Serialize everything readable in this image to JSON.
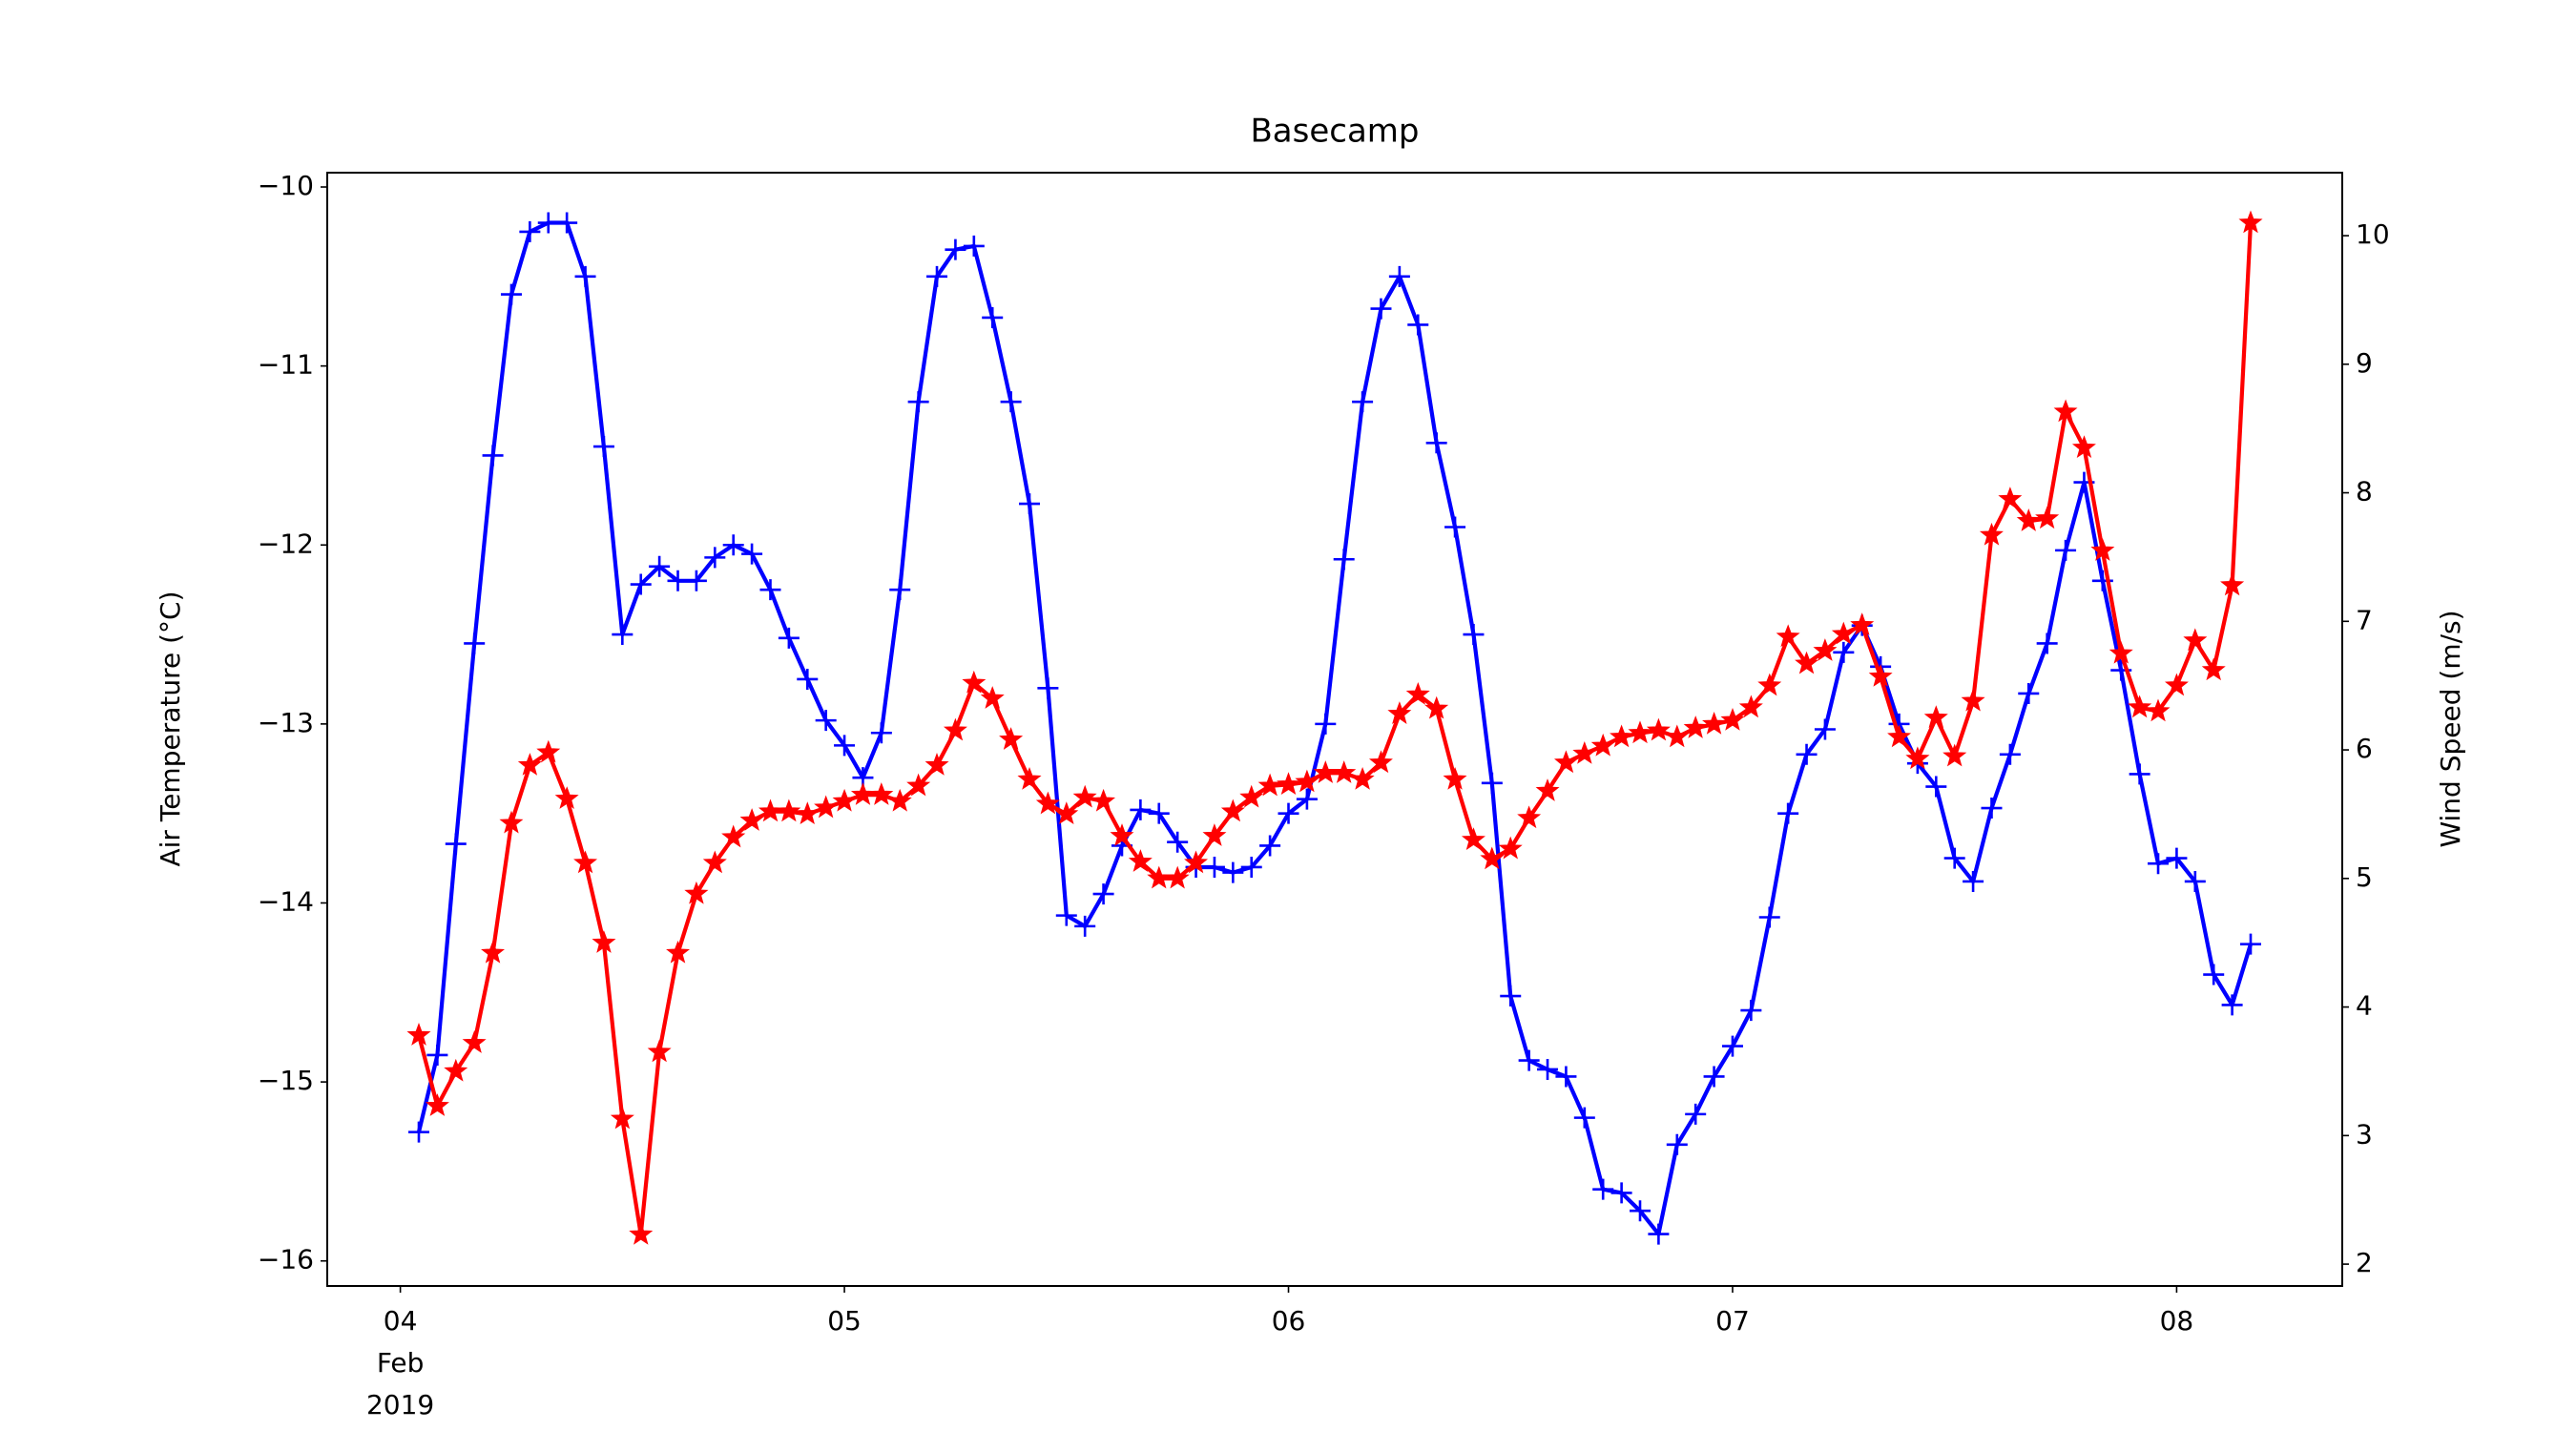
{
  "chart_data": {
    "type": "line",
    "title": "Basecamp",
    "x": [
      "2019-02-04 01:00",
      "2019-02-04 02:00",
      "2019-02-04 03:00",
      "2019-02-04 04:00",
      "2019-02-04 05:00",
      "2019-02-04 06:00",
      "2019-02-04 07:00",
      "2019-02-04 08:00",
      "2019-02-04 09:00",
      "2019-02-04 10:00",
      "2019-02-04 11:00",
      "2019-02-04 12:00",
      "2019-02-04 13:00",
      "2019-02-04 14:00",
      "2019-02-04 15:00",
      "2019-02-04 16:00",
      "2019-02-04 17:00",
      "2019-02-04 18:00",
      "2019-02-04 19:00",
      "2019-02-04 20:00",
      "2019-02-04 21:00",
      "2019-02-04 22:00",
      "2019-02-04 23:00",
      "2019-02-05 00:00",
      "2019-02-05 01:00",
      "2019-02-05 02:00",
      "2019-02-05 03:00",
      "2019-02-05 04:00",
      "2019-02-05 05:00",
      "2019-02-05 06:00",
      "2019-02-05 07:00",
      "2019-02-05 08:00",
      "2019-02-05 09:00",
      "2019-02-05 10:00",
      "2019-02-05 11:00",
      "2019-02-05 12:00",
      "2019-02-05 13:00",
      "2019-02-05 14:00",
      "2019-02-05 15:00",
      "2019-02-05 16:00",
      "2019-02-05 17:00",
      "2019-02-05 18:00",
      "2019-02-05 19:00",
      "2019-02-05 20:00",
      "2019-02-05 21:00",
      "2019-02-05 22:00",
      "2019-02-05 23:00",
      "2019-02-06 00:00",
      "2019-02-06 01:00",
      "2019-02-06 02:00",
      "2019-02-06 03:00",
      "2019-02-06 04:00",
      "2019-02-06 05:00",
      "2019-02-06 06:00",
      "2019-02-06 07:00",
      "2019-02-06 08:00",
      "2019-02-06 09:00",
      "2019-02-06 10:00",
      "2019-02-06 11:00",
      "2019-02-06 12:00",
      "2019-02-06 13:00",
      "2019-02-06 14:00",
      "2019-02-06 15:00",
      "2019-02-06 16:00",
      "2019-02-06 17:00",
      "2019-02-06 18:00",
      "2019-02-06 19:00",
      "2019-02-06 20:00",
      "2019-02-06 21:00",
      "2019-02-06 22:00",
      "2019-02-06 23:00",
      "2019-02-07 00:00",
      "2019-02-07 01:00",
      "2019-02-07 02:00",
      "2019-02-07 03:00",
      "2019-02-07 04:00",
      "2019-02-07 05:00",
      "2019-02-07 06:00",
      "2019-02-07 07:00",
      "2019-02-07 08:00",
      "2019-02-07 09:00",
      "2019-02-07 10:00",
      "2019-02-07 11:00",
      "2019-02-07 12:00",
      "2019-02-07 13:00",
      "2019-02-07 14:00",
      "2019-02-07 15:00",
      "2019-02-07 16:00",
      "2019-02-07 17:00",
      "2019-02-07 18:00",
      "2019-02-07 19:00",
      "2019-02-07 20:00",
      "2019-02-07 21:00",
      "2019-02-07 22:00",
      "2019-02-07 23:00",
      "2019-02-08 00:00",
      "2019-02-08 01:00",
      "2019-02-08 02:00",
      "2019-02-08 03:00",
      "2019-02-08 04:00"
    ],
    "series": [
      {
        "name": "Air Temperature (°C)",
        "color": "#0000ff",
        "marker": "plus",
        "axis": "y",
        "values": [
          -15.28,
          -14.85,
          -13.67,
          -12.55,
          -11.5,
          -10.6,
          -10.25,
          -10.2,
          -10.2,
          -10.5,
          -11.45,
          -12.5,
          -12.22,
          -12.12,
          -12.2,
          -12.2,
          -12.07,
          -12.0,
          -12.05,
          -12.25,
          -12.52,
          -12.75,
          -12.98,
          -13.12,
          -13.3,
          -13.05,
          -12.25,
          -11.2,
          -10.5,
          -10.35,
          -10.33,
          -10.73,
          -11.2,
          -11.77,
          -12.8,
          -14.07,
          -14.13,
          -13.95,
          -13.68,
          -13.48,
          -13.5,
          -13.66,
          -13.8,
          -13.8,
          -13.83,
          -13.8,
          -13.68,
          -13.5,
          -13.42,
          -13.0,
          -12.08,
          -11.2,
          -10.68,
          -10.5,
          -10.77,
          -11.43,
          -11.9,
          -12.5,
          -13.33,
          -14.52,
          -14.88,
          -14.93,
          -14.97,
          -15.2,
          -15.6,
          -15.62,
          -15.72,
          -15.85,
          -15.35,
          -15.18,
          -14.97,
          -14.8,
          -14.6,
          -14.08,
          -13.5,
          -13.17,
          -13.03,
          -12.6,
          -12.45,
          -12.68,
          -13.0,
          -13.22,
          -13.35,
          -13.75,
          -13.88,
          -13.47,
          -13.17,
          -12.83,
          -12.55,
          -12.03,
          -11.65,
          -12.2,
          -12.7,
          -13.28,
          -13.78,
          -13.75,
          -13.88,
          -14.4,
          -14.57,
          -14.23
        ]
      },
      {
        "name": "Wind Speed (m/s)",
        "color": "#ff0000",
        "marker": "star",
        "axis": "y2",
        "values": [
          3.78,
          3.23,
          3.5,
          3.72,
          4.42,
          5.43,
          5.88,
          5.98,
          5.62,
          5.12,
          4.5,
          3.13,
          2.23,
          3.65,
          4.42,
          4.88,
          5.12,
          5.32,
          5.45,
          5.52,
          5.52,
          5.5,
          5.55,
          5.6,
          5.65,
          5.65,
          5.6,
          5.72,
          5.88,
          6.15,
          6.52,
          6.4,
          6.08,
          5.77,
          5.58,
          5.5,
          5.63,
          5.6,
          5.33,
          5.13,
          5.0,
          5.0,
          5.12,
          5.33,
          5.52,
          5.63,
          5.72,
          5.73,
          5.75,
          5.82,
          5.82,
          5.77,
          5.9,
          6.28,
          6.43,
          6.32,
          5.77,
          5.3,
          5.15,
          5.23,
          5.47,
          5.68,
          5.9,
          5.97,
          6.03,
          6.1,
          6.13,
          6.15,
          6.1,
          6.17,
          6.2,
          6.23,
          6.33,
          6.5,
          6.88,
          6.67,
          6.77,
          6.9,
          6.97,
          6.57,
          6.1,
          5.93,
          6.25,
          5.95,
          6.38,
          7.67,
          7.95,
          7.78,
          7.8,
          8.63,
          8.35,
          7.55,
          6.75,
          6.33,
          6.3,
          6.5,
          6.85,
          6.62,
          7.28,
          10.1
        ]
      }
    ],
    "xlim": [
      "2019-02-03 20:03",
      "2019-02-08 08:57"
    ],
    "xticks": [
      {
        "value": "2019-02-04",
        "label": "04\nFeb\n2019"
      },
      {
        "value": "2019-02-05",
        "label": "05"
      },
      {
        "value": "2019-02-06",
        "label": "06"
      },
      {
        "value": "2019-02-07",
        "label": "07"
      },
      {
        "value": "2019-02-08",
        "label": "08"
      }
    ],
    "ylim": [
      -16.14,
      -9.92
    ],
    "yticks": [
      {
        "value": -16,
        "label": "−16"
      },
      {
        "value": -15,
        "label": "−15"
      },
      {
        "value": -14,
        "label": "−14"
      },
      {
        "value": -13,
        "label": "−13"
      },
      {
        "value": -12,
        "label": "−12"
      },
      {
        "value": -11,
        "label": "−11"
      },
      {
        "value": -10,
        "label": "−10"
      }
    ],
    "y2lim": [
      1.83,
      10.49
    ],
    "y2ticks": [
      2,
      3,
      4,
      5,
      6,
      7,
      8,
      9,
      10
    ],
    "grid": false
  }
}
